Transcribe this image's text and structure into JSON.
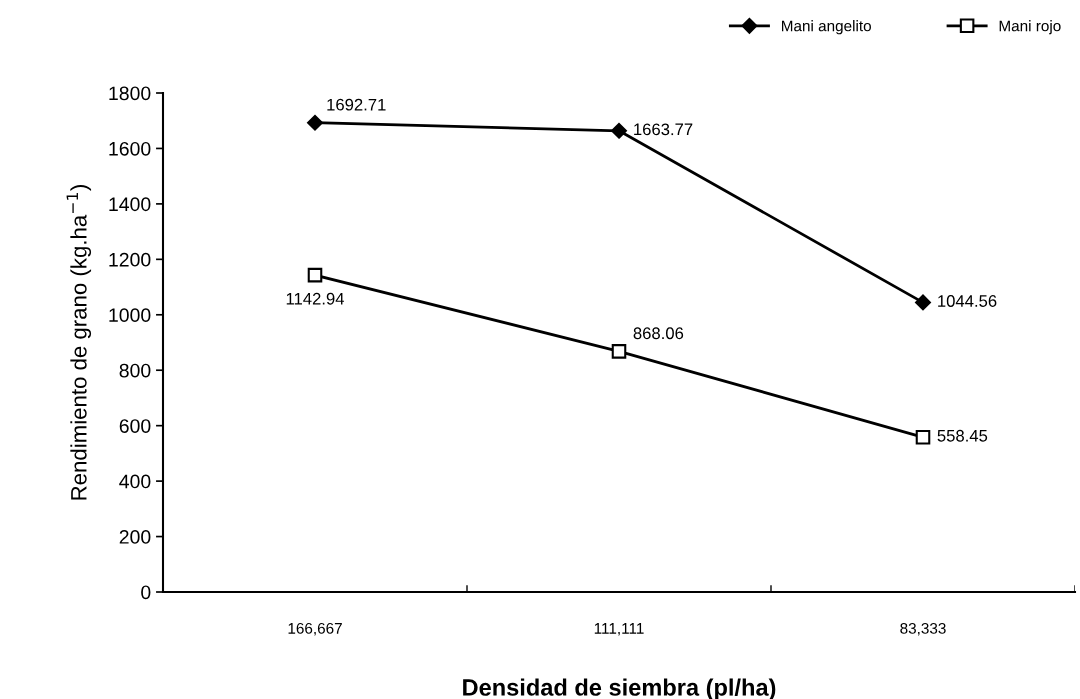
{
  "chart_data": {
    "type": "line",
    "xlabel": "Densidad de siembra (pl/ha)",
    "ylabel": "Rendimiento de grano (kg.ha$^{−1}$)",
    "categories": [
      "166,667",
      "111,111",
      "83,333"
    ],
    "series": [
      {
        "name": "Mani angelito",
        "color": "#000000",
        "marker": "diamond",
        "values": [
          1692.71,
          1663.77,
          1044.56
        ]
      },
      {
        "name": "Mani rojo",
        "color": "#000000",
        "marker": "square",
        "values": [
          1142.94,
          868.06,
          558.45
        ]
      }
    ],
    "ylim": [
      0,
      1800
    ],
    "yticks": [
      0,
      200,
      400,
      600,
      800,
      1000,
      1200,
      1400,
      1600,
      1800
    ],
    "data_labels": true,
    "grid": false,
    "legend": "top right",
    "line_style": "solid"
  }
}
